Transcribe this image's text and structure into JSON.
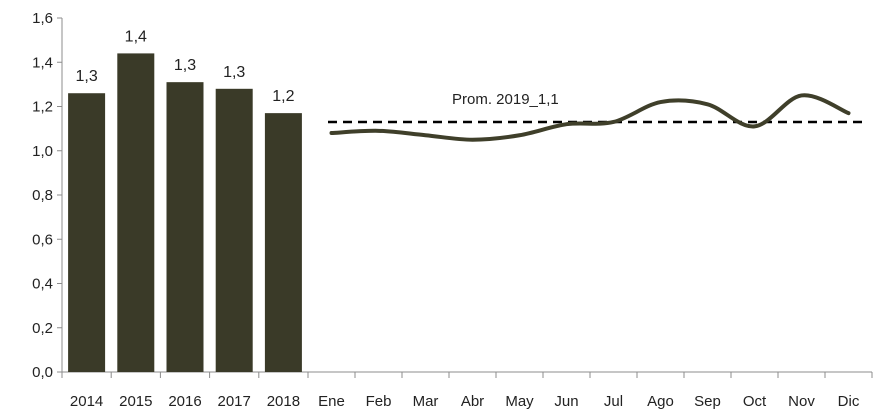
{
  "chart_data": {
    "type": "bar+line",
    "title": "",
    "xlabel": "",
    "ylabel": "",
    "ylim": [
      0,
      1.6
    ],
    "yticks": [
      "0,0",
      "0,2",
      "0,4",
      "0,6",
      "0,8",
      "1,0",
      "1,2",
      "1,4",
      "1,6"
    ],
    "bars": {
      "categories": [
        "2014",
        "2015",
        "2016",
        "2017",
        "2018"
      ],
      "values": [
        1.26,
        1.44,
        1.31,
        1.28,
        1.17
      ],
      "labels": [
        "1,3",
        "1,4",
        "1,3",
        "1,3",
        "1,2"
      ],
      "color": "#3a3a28"
    },
    "line": {
      "categories": [
        "Ene",
        "Feb",
        "Mar",
        "Abr",
        "May",
        "Jun",
        "Jul",
        "Ago",
        "Sep",
        "Oct",
        "Nov",
        "Dic"
      ],
      "values": [
        1.08,
        1.09,
        1.07,
        1.05,
        1.07,
        1.12,
        1.13,
        1.22,
        1.21,
        1.11,
        1.25,
        1.17
      ],
      "color": "#3f3f2a"
    },
    "reference_line": {
      "label": "Prom. 2019_1,1",
      "value": 1.13,
      "style": "dashed",
      "color": "#000000"
    },
    "grid": false,
    "legend": "none"
  }
}
